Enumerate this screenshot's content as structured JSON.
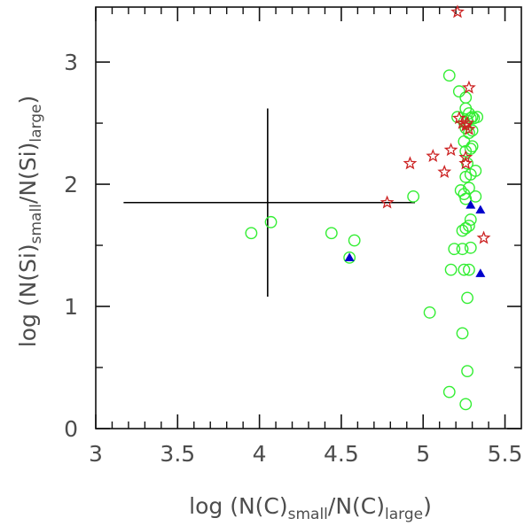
{
  "chart_data": {
    "type": "scatter",
    "title": "",
    "xlabel": {
      "prefix": "log  (N(C)",
      "sub1": "small",
      "mid": "/N(C)",
      "sub2": "large",
      "suffix": ")"
    },
    "ylabel": {
      "prefix": "log  (N(Si)",
      "sub1": "small",
      "mid": "/N(Si)",
      "sub2": "large",
      "suffix": ")"
    },
    "xlim": [
      3.0,
      5.6
    ],
    "ylim": [
      0.0,
      3.45
    ],
    "xticks": {
      "major": [
        3,
        3.5,
        4,
        4.5,
        5,
        5.5
      ],
      "major_labels": [
        "3",
        "3.5",
        "4",
        "4.5",
        "5",
        "5.5"
      ],
      "minor": [
        3.1,
        3.2,
        3.3,
        3.4,
        3.6,
        3.7,
        3.8,
        3.9,
        4.1,
        4.2,
        4.3,
        4.4,
        4.6,
        4.7,
        4.8,
        4.9,
        5.1,
        5.2,
        5.3,
        5.4
      ]
    },
    "yticks": {
      "major": [
        0,
        1,
        2,
        3
      ],
      "major_labels": [
        "0",
        "1",
        "2",
        "3"
      ],
      "minor": [
        0.5,
        1.5,
        2.5
      ]
    },
    "grid": false,
    "error_bar": {
      "center": [
        4.05,
        1.85
      ],
      "x_range": [
        3.17,
        4.95
      ],
      "y_range": [
        1.08,
        2.62
      ],
      "color": "#000000"
    },
    "series": [
      {
        "name": "circles",
        "marker": "open-circle",
        "color": "#33ee33",
        "points": [
          [
            3.95,
            1.6
          ],
          [
            4.07,
            1.69
          ],
          [
            4.44,
            1.6
          ],
          [
            4.58,
            1.54
          ],
          [
            4.55,
            1.4
          ],
          [
            4.94,
            1.9
          ],
          [
            5.04,
            0.95
          ],
          [
            5.16,
            0.3
          ],
          [
            5.16,
            2.89
          ],
          [
            5.17,
            1.3
          ],
          [
            5.19,
            1.47
          ],
          [
            5.21,
            2.55
          ],
          [
            5.22,
            2.76
          ],
          [
            5.23,
            1.95
          ],
          [
            5.24,
            1.47
          ],
          [
            5.24,
            1.62
          ],
          [
            5.24,
            0.78
          ],
          [
            5.25,
            2.51
          ],
          [
            5.25,
            2.35
          ],
          [
            5.25,
            1.92
          ],
          [
            5.25,
            1.3
          ],
          [
            5.26,
            2.71
          ],
          [
            5.26,
            2.62
          ],
          [
            5.26,
            2.46
          ],
          [
            5.26,
            2.27
          ],
          [
            5.26,
            2.06
          ],
          [
            5.26,
            1.88
          ],
          [
            5.26,
            1.64
          ],
          [
            5.26,
            0.2
          ],
          [
            5.27,
            2.52
          ],
          [
            5.27,
            2.17
          ],
          [
            5.27,
            1.07
          ],
          [
            5.27,
            0.47
          ],
          [
            5.28,
            2.58
          ],
          [
            5.28,
            2.42
          ],
          [
            5.28,
            1.97
          ],
          [
            5.28,
            1.66
          ],
          [
            5.28,
            1.3
          ],
          [
            5.29,
            2.54
          ],
          [
            5.29,
            2.29
          ],
          [
            5.29,
            2.08
          ],
          [
            5.29,
            1.71
          ],
          [
            5.29,
            1.48
          ],
          [
            5.3,
            2.55
          ],
          [
            5.3,
            2.44
          ],
          [
            5.3,
            2.31
          ],
          [
            5.31,
            2.54
          ],
          [
            5.32,
            2.11
          ],
          [
            5.32,
            1.9
          ],
          [
            5.33,
            2.55
          ]
        ]
      },
      {
        "name": "stars",
        "marker": "open-star",
        "color": "#cc2222",
        "points": [
          [
            4.78,
            1.85
          ],
          [
            4.92,
            2.17
          ],
          [
            5.06,
            2.23
          ],
          [
            5.13,
            2.1
          ],
          [
            5.17,
            2.28
          ],
          [
            5.21,
            3.41
          ],
          [
            5.22,
            2.54
          ],
          [
            5.24,
            2.5
          ],
          [
            5.26,
            2.48
          ],
          [
            5.26,
            2.22
          ],
          [
            5.26,
            2.17
          ],
          [
            5.27,
            2.5
          ],
          [
            5.28,
            2.79
          ],
          [
            5.28,
            2.45
          ],
          [
            5.37,
            1.56
          ]
        ]
      },
      {
        "name": "triangles",
        "marker": "filled-triangle",
        "color": "#0000cc",
        "points": [
          [
            4.55,
            1.4
          ],
          [
            5.29,
            1.83
          ],
          [
            5.35,
            1.79
          ],
          [
            5.35,
            1.27
          ]
        ]
      }
    ]
  }
}
